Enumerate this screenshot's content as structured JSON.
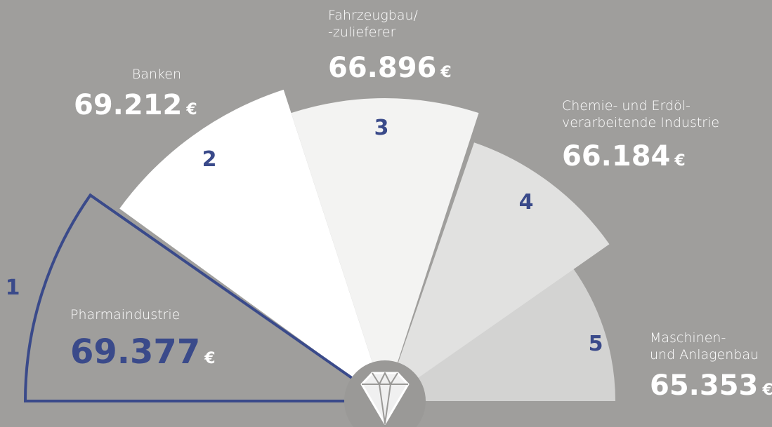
{
  "items": [
    {
      "rank": "1",
      "label": [
        "Pharmaindustrie"
      ],
      "value": "69.377",
      "unit": "€"
    },
    {
      "rank": "2",
      "label": [
        "Banken"
      ],
      "value": "69.212",
      "unit": "€"
    },
    {
      "rank": "3",
      "label": [
        "Fahrzeugbau/",
        "-zulieferer"
      ],
      "value": "66.896",
      "unit": "€"
    },
    {
      "rank": "4",
      "label": [
        "Chemie- und Erdöl-",
        "verarbeitende Industrie"
      ],
      "value": "66.184",
      "unit": "€"
    },
    {
      "rank": "5",
      "label": [
        "Maschinen-",
        "und Anlagenbau"
      ],
      "value": "65.353",
      "unit": "€"
    }
  ]
}
